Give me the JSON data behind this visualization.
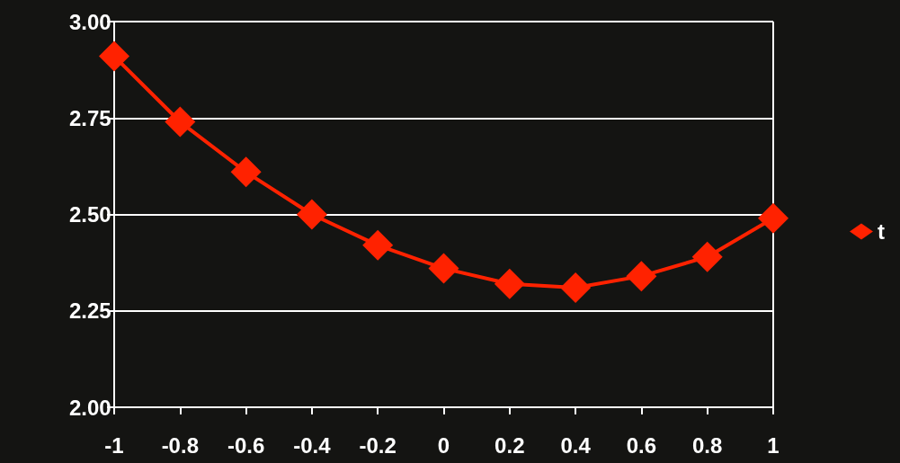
{
  "chart_data": {
    "type": "line",
    "categories": [
      "-1",
      "-0.8",
      "-0.6",
      "-0.4",
      "-0.2",
      "0",
      "0.2",
      "0.4",
      "0.6",
      "0.8",
      "1"
    ],
    "series": [
      {
        "name": "t",
        "color": "#ff2200",
        "values": [
          2.91,
          2.74,
          2.61,
          2.5,
          2.42,
          2.36,
          2.32,
          2.31,
          2.34,
          2.39,
          2.49
        ]
      }
    ],
    "ylim": [
      2.0,
      3.0
    ],
    "yticks": [
      {
        "value": 2.0,
        "label": "2.00"
      },
      {
        "value": 2.25,
        "label": "2.25"
      },
      {
        "value": 2.5,
        "label": "2.50"
      },
      {
        "value": 2.75,
        "label": "2.75"
      },
      {
        "value": 3.0,
        "label": "3.00"
      }
    ],
    "grid": "y",
    "legend": "right",
    "marker": "diamond",
    "line_style": "solid"
  }
}
